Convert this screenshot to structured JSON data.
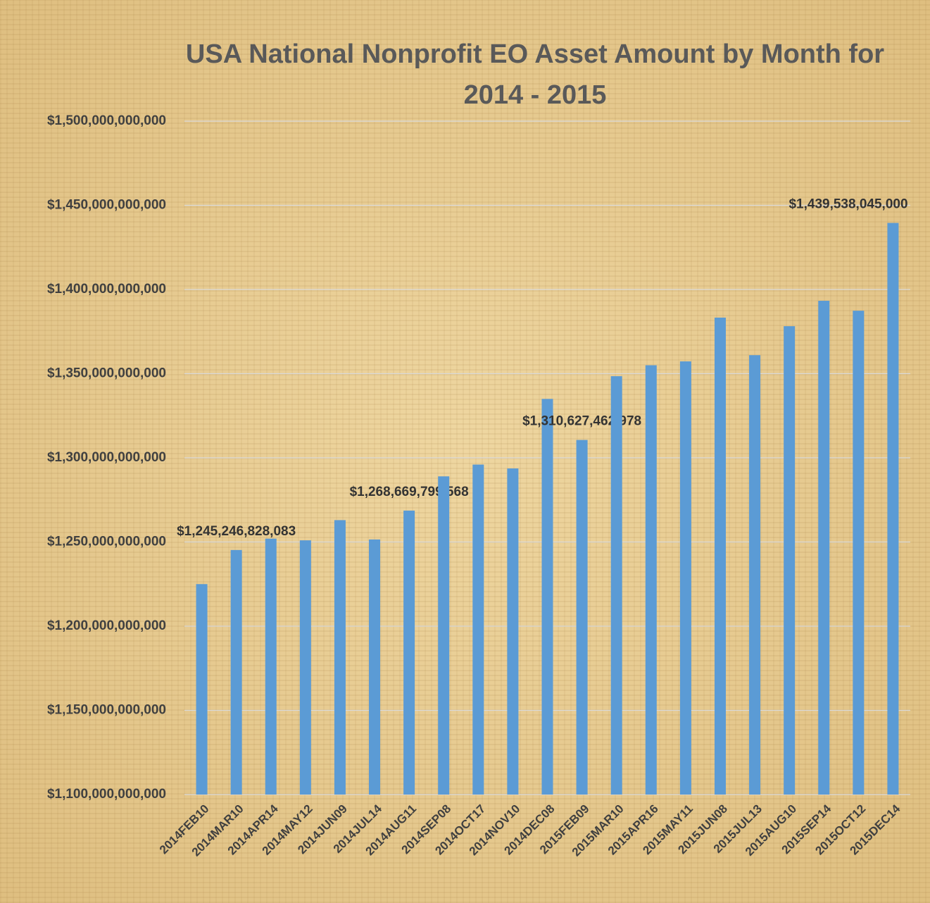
{
  "chart_data": {
    "type": "bar",
    "title": "USA National Nonprofit EO Asset Amount by Month for 2014 - 2015",
    "categories": [
      "2014FEB10",
      "2014MAR10",
      "2014APR14",
      "2014MAY12",
      "2014JUN09",
      "2014JUL14",
      "2014AUG11",
      "2014SEP08",
      "2014OCT17",
      "2014NOV10",
      "2014DEC08",
      "2015FEB09",
      "2015MAR10",
      "2015APR16",
      "2015MAY11",
      "2015JUN08",
      "2015JUL13",
      "2015AUG10",
      "2015SEP14",
      "2015OCT12",
      "2015DEC14"
    ],
    "values": [
      1225000000000,
      1245246828083,
      1252000000000,
      1251000000000,
      1263000000000,
      1251500000000,
      1268669799568,
      1289000000000,
      1296000000000,
      1293700000000,
      1335000000000,
      1310627462978,
      1348500000000,
      1355000000000,
      1357300000000,
      1383300000000,
      1361000000000,
      1378200000000,
      1393300000000,
      1387400000000,
      1439538045000
    ],
    "value_labels": [
      null,
      "$1,245,246,828,083",
      null,
      null,
      null,
      null,
      "$1,268,669,799,568",
      null,
      null,
      null,
      null,
      "$1,310,627,462,978",
      null,
      null,
      null,
      null,
      null,
      null,
      null,
      null,
      "$1,439,538,045,000"
    ],
    "color": "#5b9bd5",
    "ylim": [
      1100000000000,
      1500000000000
    ],
    "yticks": [
      {
        "value": 1100000000000,
        "label": "$1,100,000,000,000"
      },
      {
        "value": 1150000000000,
        "label": "$1,150,000,000,000"
      },
      {
        "value": 1200000000000,
        "label": "$1,200,000,000,000"
      },
      {
        "value": 1250000000000,
        "label": "$1,250,000,000,000"
      },
      {
        "value": 1300000000000,
        "label": "$1,300,000,000,000"
      },
      {
        "value": 1350000000000,
        "label": "$1,350,000,000,000"
      },
      {
        "value": 1400000000000,
        "label": "$1,400,000,000,000"
      },
      {
        "value": 1450000000000,
        "label": "$1,450,000,000,000"
      },
      {
        "value": 1500000000000,
        "label": "$1,500,000,000,000"
      }
    ],
    "grid": true
  }
}
